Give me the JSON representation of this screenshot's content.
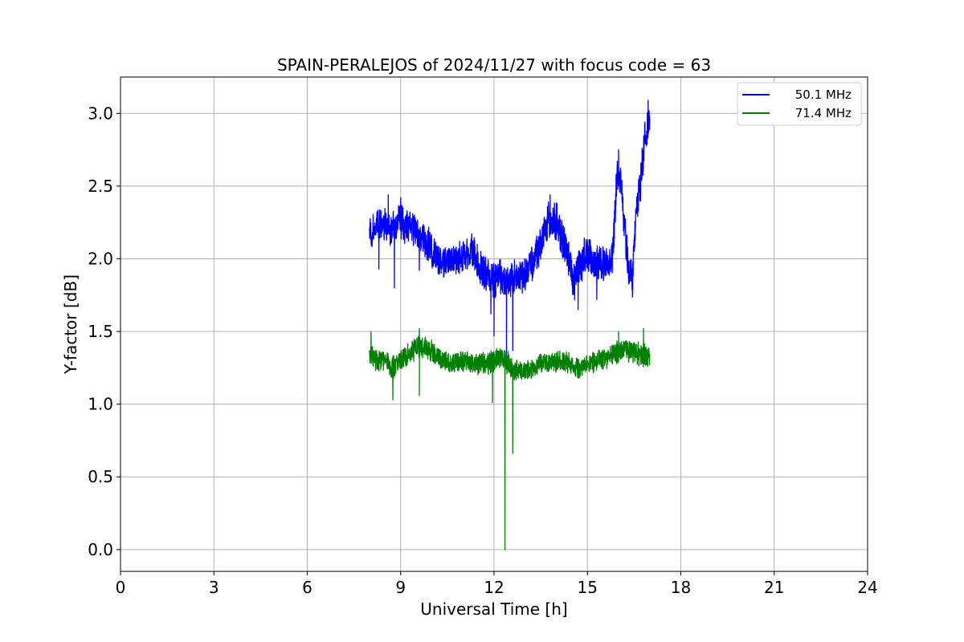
{
  "chart_data": {
    "type": "line",
    "title": "SPAIN-PERALEJOS of 2024/11/27 with focus code = 63",
    "xlabel": "Universal Time [h]",
    "ylabel": "Y-factor [dB]",
    "xlim": [
      0,
      24
    ],
    "ylim": [
      -0.15,
      3.25
    ],
    "xticks": [
      0,
      3,
      6,
      9,
      12,
      15,
      18,
      21,
      24
    ],
    "xtick_labels": [
      "0",
      "3",
      "6",
      "9",
      "12",
      "15",
      "18",
      "21",
      "24"
    ],
    "yticks": [
      0.0,
      0.5,
      1.0,
      1.5,
      2.0,
      2.5,
      3.0
    ],
    "ytick_labels": [
      "0.0",
      "0.5",
      "1.0",
      "1.5",
      "2.0",
      "2.5",
      "3.0"
    ],
    "grid": true,
    "legend_position": "top-right",
    "series": [
      {
        "name": "50.1 MHz",
        "color": "#0000ff",
        "x": [
          8.0,
          8.1,
          8.3,
          8.5,
          8.7,
          8.8,
          9.0,
          9.2,
          9.5,
          9.7,
          10.0,
          10.3,
          10.6,
          11.0,
          11.3,
          11.5,
          11.8,
          12.0,
          12.2,
          12.35,
          12.5,
          12.7,
          13.0,
          13.3,
          13.6,
          13.8,
          14.0,
          14.2,
          14.4,
          14.6,
          14.8,
          15.0,
          15.2,
          15.5,
          15.8,
          15.95,
          16.05,
          16.2,
          16.35,
          16.45,
          16.55,
          16.7,
          16.85,
          17.0
        ],
        "y": [
          2.18,
          2.2,
          2.22,
          2.25,
          2.2,
          2.22,
          2.25,
          2.22,
          2.2,
          2.15,
          2.05,
          1.98,
          1.98,
          2.02,
          2.05,
          1.95,
          1.88,
          1.85,
          1.88,
          1.85,
          1.85,
          1.87,
          1.9,
          2.0,
          2.15,
          2.3,
          2.25,
          2.12,
          1.98,
          1.85,
          1.98,
          2.05,
          1.95,
          1.98,
          2.0,
          2.6,
          2.55,
          2.2,
          1.9,
          1.85,
          2.3,
          2.5,
          2.85,
          2.95
        ],
        "band": [
          0.15,
          0.14,
          0.14,
          0.14,
          0.14,
          0.14,
          0.14,
          0.14,
          0.14,
          0.14,
          0.14,
          0.12,
          0.12,
          0.12,
          0.14,
          0.14,
          0.14,
          0.14,
          0.14,
          0.14,
          0.14,
          0.14,
          0.14,
          0.14,
          0.14,
          0.16,
          0.16,
          0.16,
          0.16,
          0.16,
          0.16,
          0.14,
          0.14,
          0.14,
          0.14,
          0.14,
          0.14,
          0.14,
          0.14,
          0.14,
          0.14,
          0.14,
          0.16,
          0.16
        ],
        "dips": [
          [
            8.3,
            1.93
          ],
          [
            8.8,
            1.8
          ],
          [
            9.6,
            1.92
          ],
          [
            11.9,
            1.62
          ],
          [
            12.0,
            1.47
          ],
          [
            12.4,
            1.33
          ],
          [
            12.6,
            1.37
          ],
          [
            14.7,
            1.65
          ],
          [
            15.3,
            1.72
          ],
          [
            16.45,
            1.74
          ]
        ],
        "spikes": [
          [
            8.6,
            2.44
          ],
          [
            9.0,
            2.42
          ],
          [
            13.8,
            2.44
          ],
          [
            16.0,
            2.75
          ],
          [
            16.95,
            3.09
          ]
        ]
      },
      {
        "name": "71.4 MHz",
        "color": "#008000",
        "x": [
          8.0,
          8.2,
          8.5,
          8.8,
          9.0,
          9.3,
          9.6,
          9.9,
          10.2,
          10.6,
          11.0,
          11.4,
          11.8,
          12.0,
          12.2,
          12.4,
          12.6,
          12.9,
          13.2,
          13.5,
          13.8,
          14.1,
          14.4,
          14.7,
          15.0,
          15.3,
          15.6,
          15.9,
          16.2,
          16.5,
          16.8,
          17.0
        ],
        "y": [
          1.35,
          1.3,
          1.3,
          1.25,
          1.3,
          1.35,
          1.4,
          1.38,
          1.32,
          1.28,
          1.3,
          1.28,
          1.28,
          1.3,
          1.32,
          1.3,
          1.25,
          1.22,
          1.25,
          1.28,
          1.28,
          1.3,
          1.28,
          1.25,
          1.28,
          1.3,
          1.32,
          1.35,
          1.38,
          1.35,
          1.34,
          1.33
        ],
        "band": [
          0.1,
          0.09,
          0.09,
          0.09,
          0.09,
          0.09,
          0.09,
          0.09,
          0.08,
          0.08,
          0.08,
          0.08,
          0.09,
          0.09,
          0.09,
          0.09,
          0.09,
          0.08,
          0.08,
          0.08,
          0.08,
          0.08,
          0.08,
          0.08,
          0.08,
          0.08,
          0.08,
          0.09,
          0.09,
          0.09,
          0.09,
          0.09
        ],
        "dips": [
          [
            8.75,
            1.03
          ],
          [
            9.6,
            1.06
          ],
          [
            11.95,
            1.01
          ],
          [
            12.35,
            0.0
          ],
          [
            12.6,
            0.66
          ]
        ],
        "spikes": [
          [
            8.05,
            1.5
          ],
          [
            9.6,
            1.52
          ],
          [
            16.0,
            1.5
          ],
          [
            16.8,
            1.52
          ]
        ]
      }
    ]
  }
}
